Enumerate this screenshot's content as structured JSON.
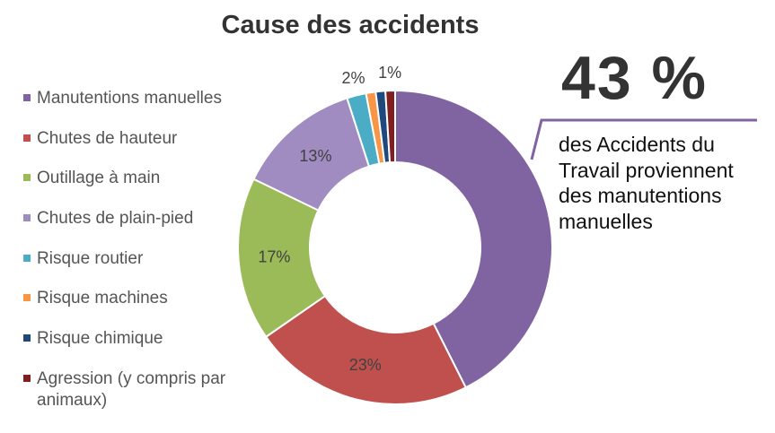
{
  "chart_data": {
    "type": "pie",
    "title": "Cause des accidents",
    "categories": [
      "Manutentions manuelles",
      "Chutes de hauteur",
      "Outillage à main",
      "Chutes de plain-pied",
      "Risque routier",
      "Risque machines",
      "Risque chimique",
      "Agression (y compris par animaux)"
    ],
    "values": [
      43,
      23,
      17,
      13,
      2,
      1,
      1,
      1
    ],
    "data_labels": [
      "",
      "23%",
      "17%",
      "13%",
      "2%",
      "",
      "",
      "1%"
    ],
    "colors": [
      "#8064a2",
      "#c0504d",
      "#9bbb59",
      "#a08cc0",
      "#4bacc6",
      "#f79646",
      "#1f497d",
      "#7f1f1f"
    ],
    "donut": true,
    "legend_position": "left"
  },
  "callout": {
    "headline": "43 %",
    "text": "des Accidents du Travail proviennent des manutentions manuelles",
    "color": "#8064a2"
  }
}
